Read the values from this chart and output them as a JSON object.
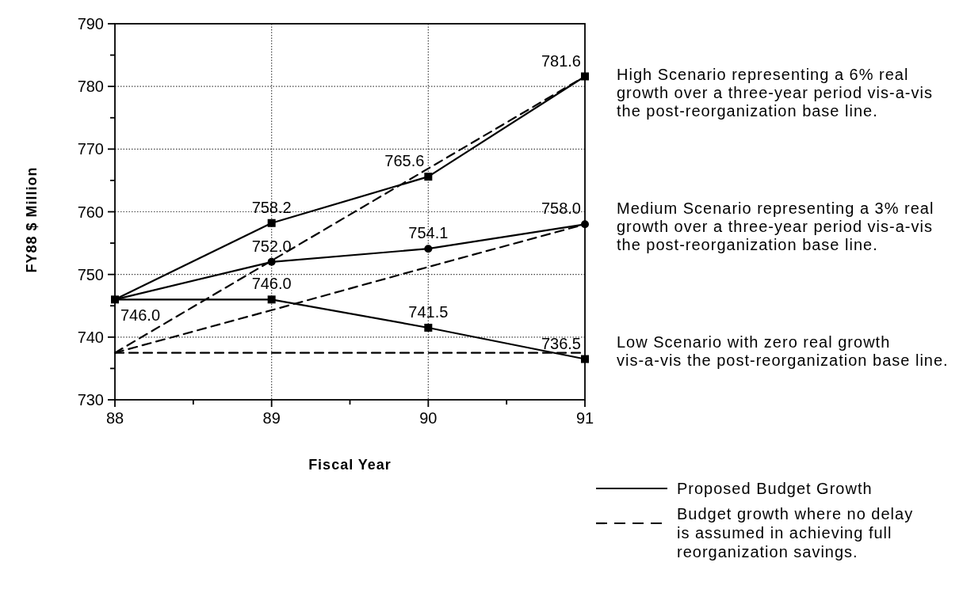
{
  "chart_data": {
    "type": "line",
    "xlabel": "Fiscal Year",
    "ylabel": "FY88 $ Million",
    "x": [
      88,
      89,
      90,
      91
    ],
    "xlim": [
      88,
      91
    ],
    "xticks": [
      88,
      {
        "value": 88.5,
        "label": null
      },
      89,
      {
        "value": 89.5,
        "label": null
      },
      90,
      {
        "value": 90.5,
        "label": null
      },
      91
    ],
    "ylim": [
      730,
      790
    ],
    "yticks": [
      730,
      {
        "value": 735,
        "label": null
      },
      740,
      {
        "value": 745,
        "label": null
      },
      750,
      {
        "value": 755,
        "label": null
      },
      760,
      {
        "value": 765,
        "label": null
      },
      770,
      {
        "value": 775,
        "label": null
      },
      780,
      {
        "value": 785,
        "label": null
      },
      790
    ],
    "grid": true,
    "legend": "bottom right",
    "series": [
      {
        "name": "Proposed Budget Growth",
        "color": "#000000",
        "line_style": "solid",
        "marker": "square",
        "values": [
          746.0,
          758.2,
          765.6,
          781.6
        ],
        "value_labels": [
          null,
          "758.2",
          "765.6",
          "781.6"
        ]
      },
      {
        "color": "#000000",
        "line_style": "solid",
        "marker": "circle",
        "values": [
          746.0,
          752.0,
          754.1,
          758.0
        ],
        "value_labels": [
          null,
          "752.0",
          "754.1",
          "758.0"
        ]
      },
      {
        "color": "#000000",
        "line_style": "solid",
        "marker": "square",
        "values": [
          746.0,
          746.0,
          741.5,
          736.5
        ],
        "value_labels": [
          "746.0",
          "746.0",
          "741.5",
          "736.5"
        ]
      },
      {
        "name": "Budget growth where no delay is assumed in achieving full reorganization savings.",
        "color": "#000000",
        "line_style": "dashed",
        "marker": "none",
        "values": [
          737.5,
          752.2,
          766.9,
          781.6
        ]
      },
      {
        "color": "#000000",
        "line_style": "dashed",
        "marker": "none",
        "values": [
          737.5,
          744.3,
          751.2,
          758.0
        ]
      },
      {
        "color": "#000000",
        "line_style": "dashed",
        "marker": "none",
        "values": [
          737.5,
          737.5,
          737.5,
          737.5
        ]
      }
    ],
    "annotations": [
      "High Scenario representing a 6% real growth over a three-year period vis-a-vis the post-reorganization base line.",
      "Medium Scenario representing a 3% real growth over a three-year period vis-a-vis the post-reorganization base line.",
      "Low Scenario with zero real growth vis-a-vis the post-reorganization base line."
    ]
  }
}
